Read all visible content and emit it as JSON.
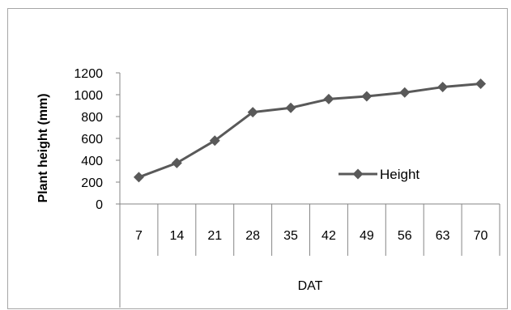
{
  "chart_data": {
    "type": "line",
    "categories": [
      "7",
      "14",
      "21",
      "28",
      "35",
      "42",
      "49",
      "56",
      "63",
      "70"
    ],
    "series": [
      {
        "name": "Height",
        "values": [
          245,
          375,
          580,
          840,
          880,
          960,
          985,
          1020,
          1070,
          1100
        ]
      }
    ],
    "xlabel": "DAT",
    "ylabel": "Plant height (mm)",
    "ylim": [
      0,
      1200
    ],
    "yticks": [
      "0",
      "200",
      "400",
      "600",
      "800",
      "1000",
      "1200"
    ],
    "grid": false,
    "legend_position": "right",
    "colors": {
      "series": "#595959",
      "axis": "#868686",
      "frame": "#a6a6a6"
    }
  }
}
